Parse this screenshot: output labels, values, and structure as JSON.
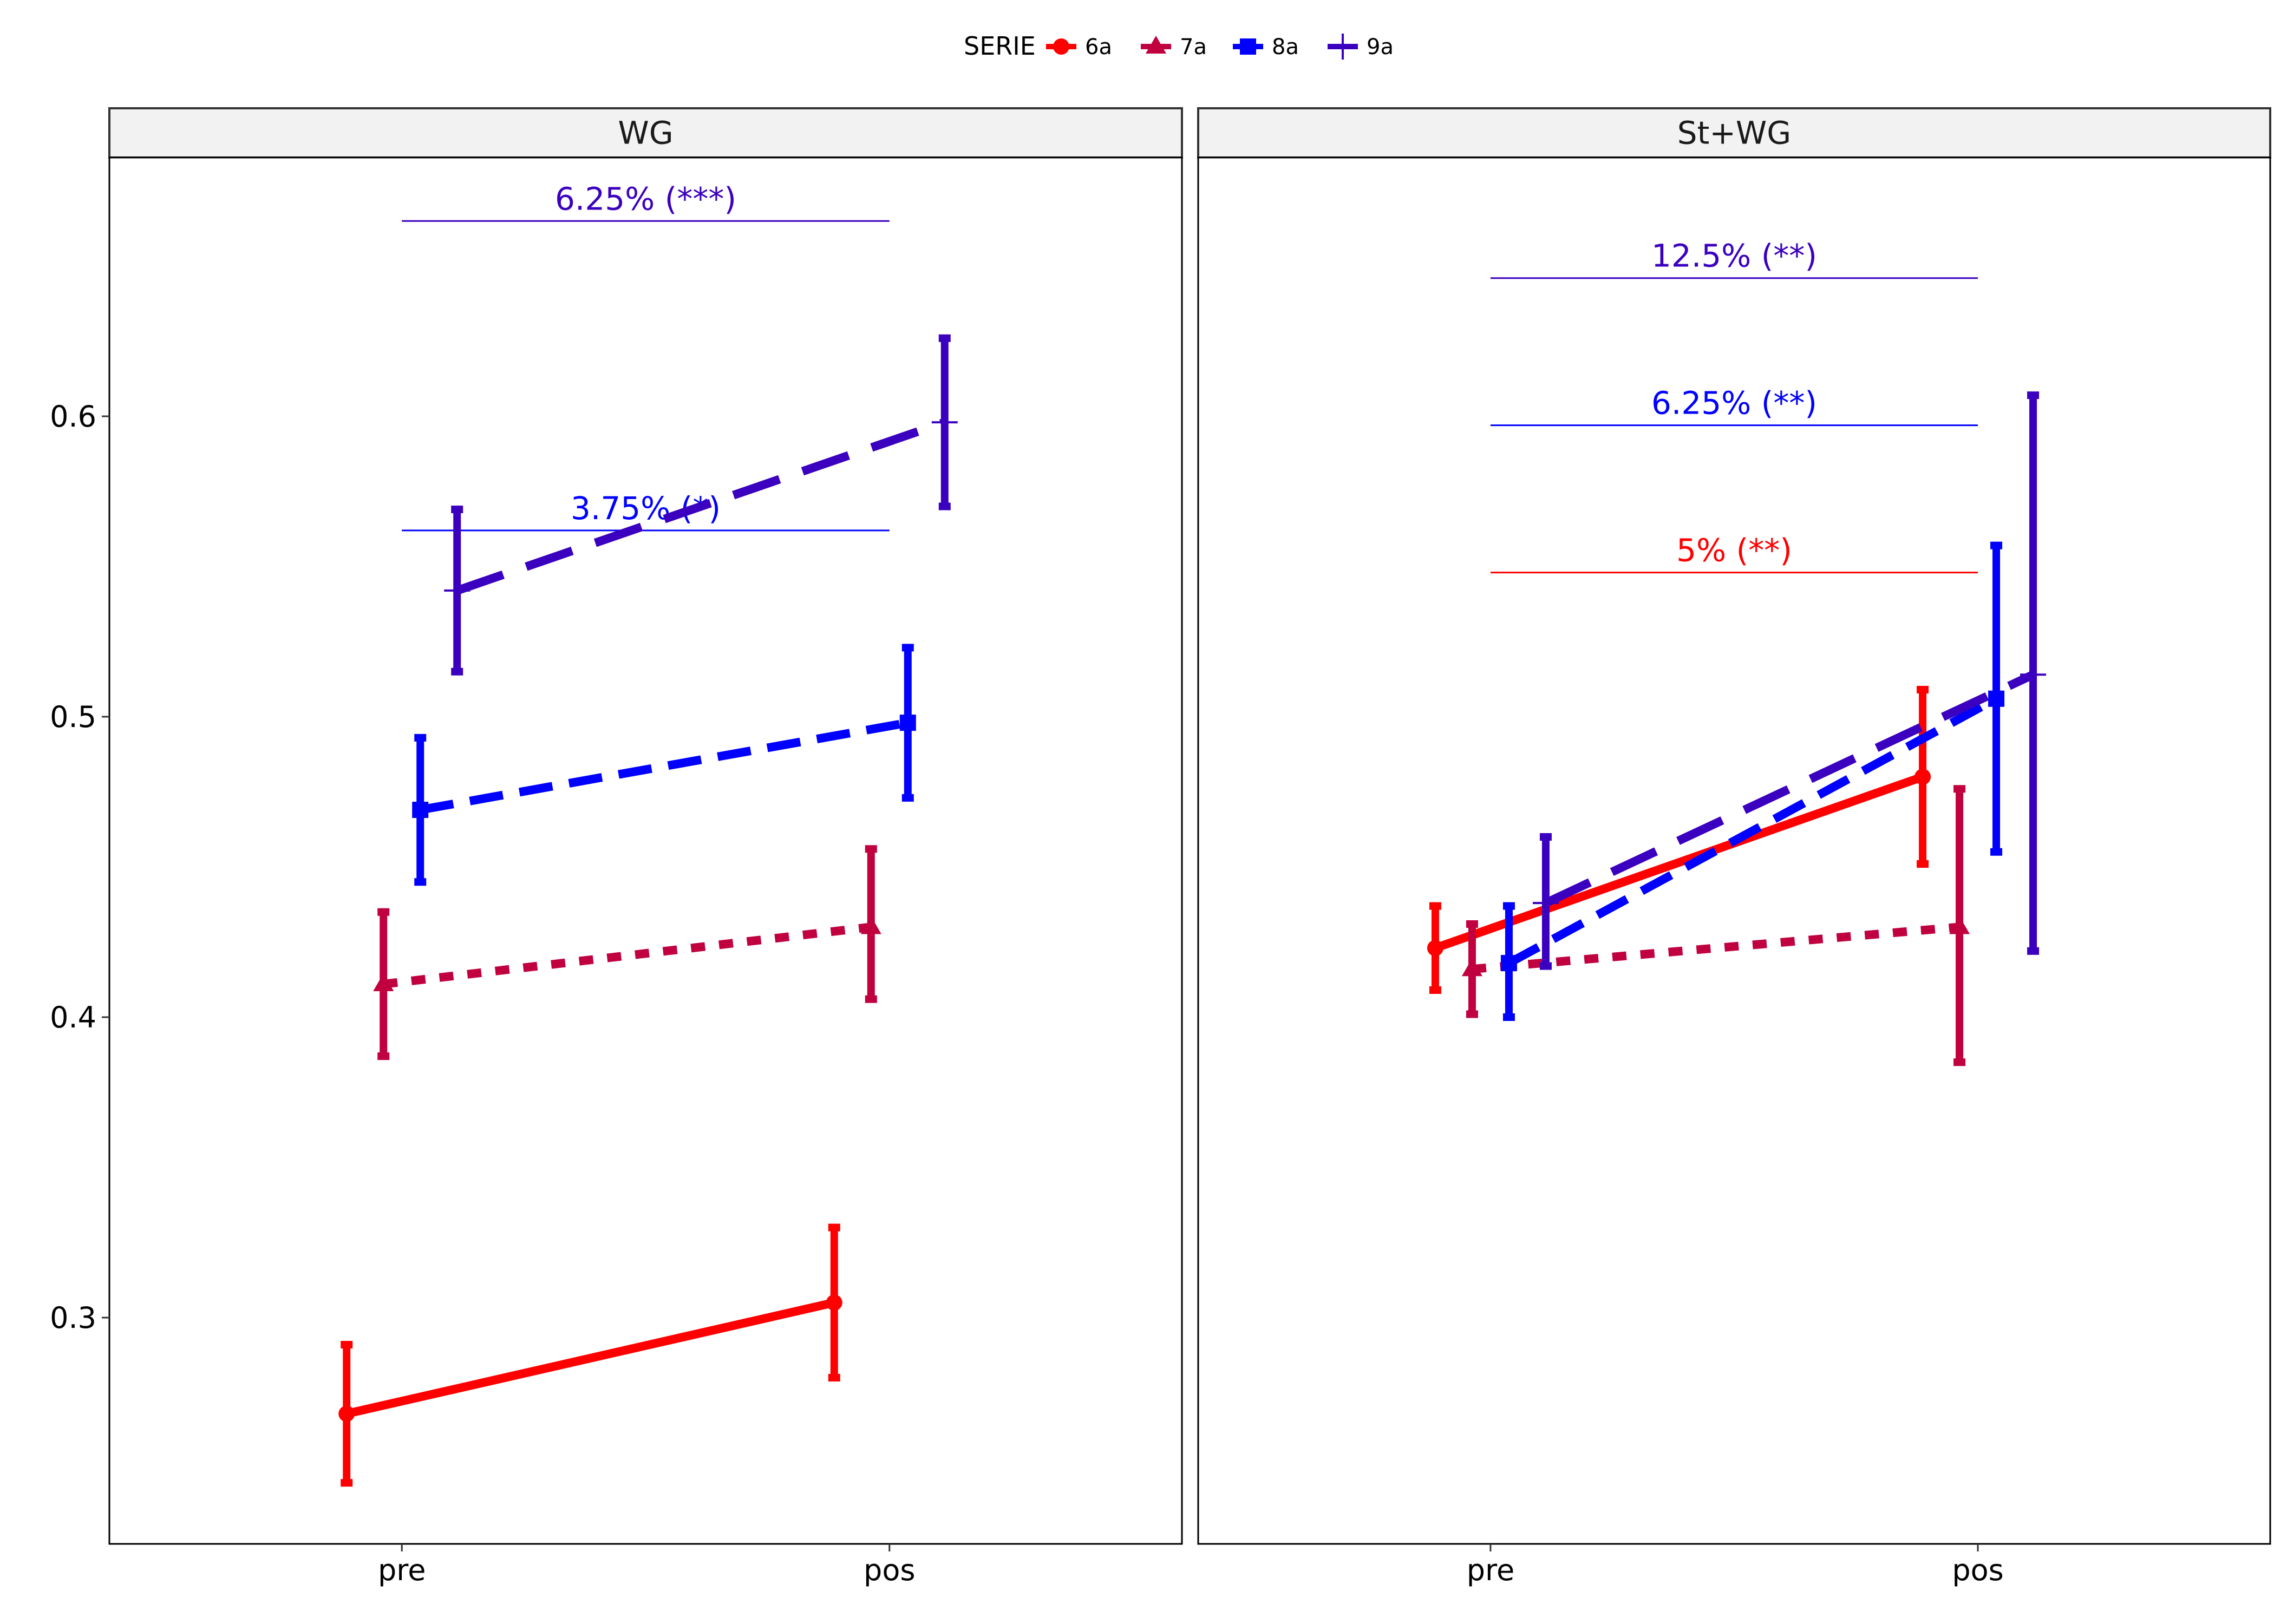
{
  "chart_data": {
    "type": "line",
    "x_categories": [
      "pre",
      "pos"
    ],
    "ylim": [
      0.225,
      0.685
    ],
    "y_ticks": [
      "0.3",
      "0.4",
      "0.5",
      "0.6"
    ],
    "grid": false,
    "legend": {
      "title": "SERIE",
      "position": "top",
      "entries": [
        {
          "label": "6a",
          "color": "#ff0000",
          "marker": "circle",
          "dash": "solid"
        },
        {
          "label": "7a",
          "color": "#c0003f",
          "marker": "triangle",
          "dash": "dotted"
        },
        {
          "label": "8a",
          "color": "#0000ff",
          "marker": "square",
          "dash": "dashed"
        },
        {
          "label": "9a",
          "color": "#3b00bf",
          "marker": "cross",
          "dash": "longdash"
        }
      ]
    },
    "panels": [
      {
        "name": "WG",
        "series": [
          {
            "serie": "6a",
            "points": [
              {
                "x": "pre",
                "y": 0.268,
                "lo": 0.245,
                "hi": 0.291
              },
              {
                "x": "pos",
                "y": 0.305,
                "lo": 0.28,
                "hi": 0.33
              }
            ]
          },
          {
            "serie": "7a",
            "points": [
              {
                "x": "pre",
                "y": 0.411,
                "lo": 0.387,
                "hi": 0.435
              },
              {
                "x": "pos",
                "y": 0.43,
                "lo": 0.406,
                "hi": 0.456
              }
            ]
          },
          {
            "serie": "8a",
            "points": [
              {
                "x": "pre",
                "y": 0.469,
                "lo": 0.445,
                "hi": 0.493
              },
              {
                "x": "pos",
                "y": 0.498,
                "lo": 0.473,
                "hi": 0.523
              }
            ]
          },
          {
            "serie": "9a",
            "points": [
              {
                "x": "pre",
                "y": 0.542,
                "lo": 0.515,
                "hi": 0.569
              },
              {
                "x": "pos",
                "y": 0.598,
                "lo": 0.57,
                "hi": 0.626
              }
            ]
          }
        ],
        "annotations": [
          {
            "label": "6.25% (***)",
            "y": 0.665,
            "color": "#3b00bf"
          },
          {
            "label": "3.75% (*)",
            "y": 0.562,
            "color": "#0000ff"
          }
        ]
      },
      {
        "name": "St+WG",
        "series": [
          {
            "serie": "6a",
            "points": [
              {
                "x": "pre",
                "y": 0.423,
                "lo": 0.409,
                "hi": 0.437
              },
              {
                "x": "pos",
                "y": 0.48,
                "lo": 0.451,
                "hi": 0.509
              }
            ]
          },
          {
            "serie": "7a",
            "points": [
              {
                "x": "pre",
                "y": 0.416,
                "lo": 0.401,
                "hi": 0.431
              },
              {
                "x": "pos",
                "y": 0.43,
                "lo": 0.385,
                "hi": 0.476
              }
            ]
          },
          {
            "serie": "8a",
            "points": [
              {
                "x": "pre",
                "y": 0.418,
                "lo": 0.4,
                "hi": 0.437
              },
              {
                "x": "pos",
                "y": 0.506,
                "lo": 0.455,
                "hi": 0.557
              }
            ]
          },
          {
            "serie": "9a",
            "points": [
              {
                "x": "pre",
                "y": 0.438,
                "lo": 0.417,
                "hi": 0.46
              },
              {
                "x": "pos",
                "y": 0.514,
                "lo": 0.422,
                "hi": 0.607
              }
            ]
          }
        ],
        "annotations": [
          {
            "label": "12.5% (**)",
            "y": 0.646,
            "color": "#3b00bf"
          },
          {
            "label": "6.25% (**)",
            "y": 0.597,
            "color": "#0000ff"
          },
          {
            "label": "5% (**)",
            "y": 0.548,
            "color": "#ff0000"
          }
        ]
      }
    ]
  }
}
